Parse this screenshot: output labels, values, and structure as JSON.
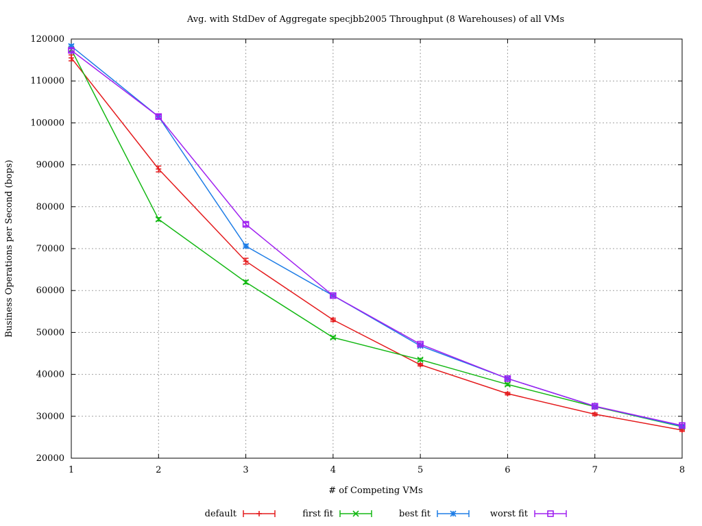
{
  "chart_data": {
    "type": "line",
    "title": "Avg. with StdDev of Aggregate specjbb2005 Throughput (8 Warehouses) of all VMs",
    "xlabel": "# of Competing VMs",
    "ylabel": "Business Operations per Second (bops)",
    "xlim": [
      1,
      8
    ],
    "ylim": [
      20000,
      120000
    ],
    "x": [
      1,
      2,
      3,
      4,
      5,
      6,
      7,
      8
    ],
    "x_ticks": [
      "1",
      "2",
      "3",
      "4",
      "5",
      "6",
      "7",
      "8"
    ],
    "y_ticks": [
      "20000",
      "30000",
      "40000",
      "50000",
      "60000",
      "70000",
      "80000",
      "90000",
      "100000",
      "110000",
      "120000"
    ],
    "grid": true,
    "legend_position": "bottom",
    "series": [
      {
        "name": "default",
        "color": "#e41a1c",
        "marker": "plus",
        "values": [
          115500,
          89000,
          67000,
          53000,
          42300,
          35400,
          30500,
          26700
        ],
        "stddev": [
          700,
          700,
          700,
          400,
          300,
          300,
          300,
          300
        ]
      },
      {
        "name": "first fit",
        "color": "#14b814",
        "marker": "cross",
        "values": [
          117500,
          77000,
          62000,
          48800,
          43500,
          37600,
          32300,
          27500
        ],
        "stddev": [
          400,
          400,
          400,
          300,
          300,
          300,
          300,
          300
        ]
      },
      {
        "name": "best fit",
        "color": "#1e7de6",
        "marker": "star",
        "values": [
          118300,
          101500,
          70600,
          58800,
          46800,
          39000,
          32400,
          27600
        ],
        "stddev": [
          400,
          400,
          400,
          300,
          300,
          300,
          300,
          300
        ]
      },
      {
        "name": "worst fit",
        "color": "#a020f0",
        "marker": "square",
        "values": [
          117300,
          101500,
          75800,
          58800,
          47200,
          39000,
          32400,
          27800
        ],
        "stddev": [
          400,
          400,
          400,
          300,
          300,
          300,
          300,
          300
        ]
      }
    ]
  }
}
